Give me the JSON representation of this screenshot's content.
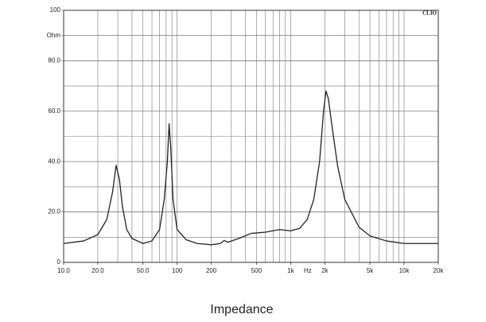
{
  "chart_data": {
    "type": "line",
    "title": "Impedance",
    "brand": "CLIO",
    "xlabel": "Hz",
    "xscale": "log",
    "minor_grid": true,
    "color": "#222222",
    "xlim": [
      10,
      20000
    ],
    "ylim": [
      0,
      100
    ],
    "xticks": [
      {
        "value": 10,
        "label": "10.0"
      },
      {
        "value": 20,
        "label": "20.0"
      },
      {
        "value": 50,
        "label": "50.0"
      },
      100,
      200,
      500,
      {
        "value": 1000,
        "label": "1k"
      },
      {
        "value": 2000,
        "label": "2k"
      },
      {
        "value": 5000,
        "label": "5k"
      },
      {
        "value": 10000,
        "label": "10k"
      },
      {
        "value": 20000,
        "label": "20k"
      }
    ],
    "yticks": [
      0,
      {
        "value": 20,
        "label": "20.0"
      },
      {
        "value": 40,
        "label": "40.0"
      },
      {
        "value": 60,
        "label": "60.0"
      },
      {
        "value": 80,
        "label": "80.0"
      },
      {
        "value": 90,
        "label": "Ohm"
      },
      100
    ],
    "x": [
      10,
      15,
      20,
      24,
      27,
      29,
      31,
      33,
      36,
      40,
      50,
      60,
      70,
      77,
      82,
      85,
      88,
      92,
      100,
      120,
      150,
      200,
      240,
      260,
      280,
      350,
      450,
      600,
      800,
      1000,
      1200,
      1400,
      1600,
      1800,
      1950,
      2050,
      2150,
      2300,
      2600,
      3000,
      4000,
      5000,
      7000,
      10000,
      15000,
      20000
    ],
    "values": [
      7.5,
      8.5,
      11,
      17,
      28,
      38.5,
      33,
      22,
      13,
      9.5,
      7.5,
      8.5,
      13,
      25,
      40,
      55,
      45,
      25,
      13,
      9,
      7.5,
      7,
      7.5,
      8.7,
      8,
      9.5,
      11.5,
      12,
      13,
      12.5,
      13.5,
      17,
      25,
      40,
      60,
      68,
      65,
      55,
      38,
      25,
      14,
      10.5,
      8.5,
      7.5,
      7.5,
      7.5
    ]
  }
}
